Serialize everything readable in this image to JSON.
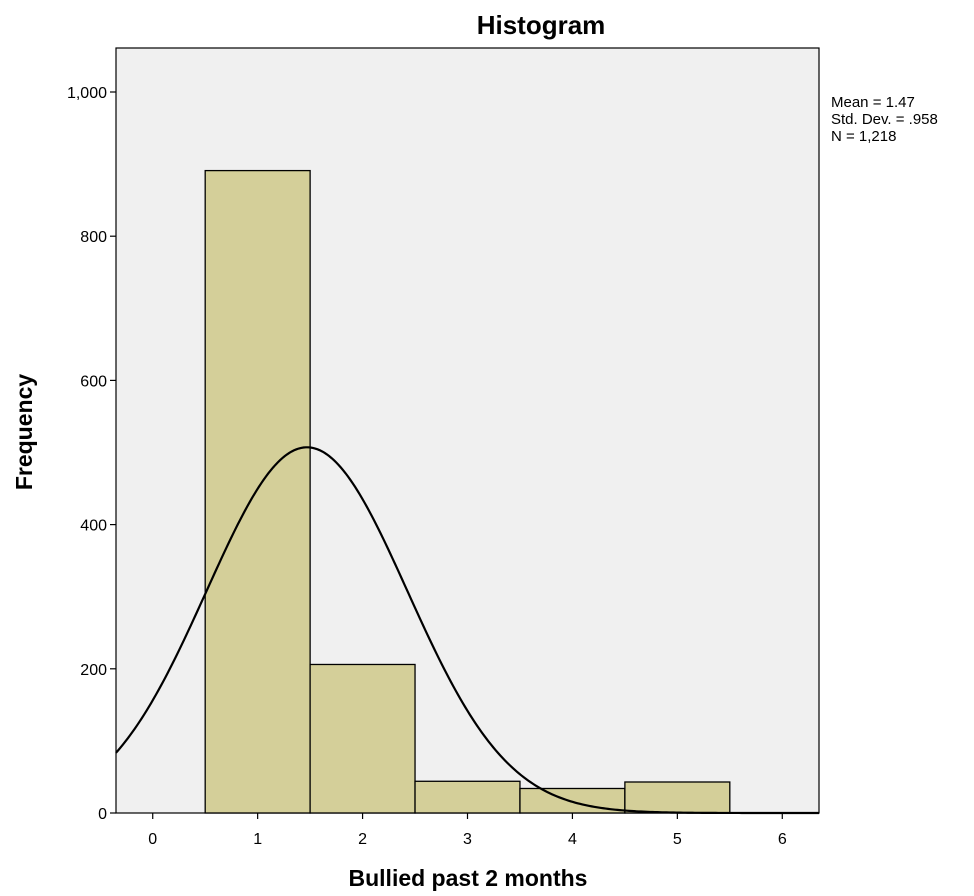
{
  "chart_data": {
    "type": "bar",
    "title": "Histogram",
    "xlabel": "Bullied past 2 months",
    "ylabel": "Frequency",
    "xlim": [
      -0.35,
      6.35
    ],
    "ylim": [
      0,
      1000
    ],
    "x_ticks": [
      0,
      1,
      2,
      3,
      4,
      5,
      6
    ],
    "x_tick_labels": [
      "0",
      "1",
      "2",
      "3",
      "4",
      "5",
      "6"
    ],
    "y_ticks": [
      0,
      200,
      400,
      600,
      800,
      1000
    ],
    "y_tick_labels": [
      "0",
      "200",
      "400",
      "600",
      "800",
      "1,000"
    ],
    "bins": [
      {
        "center": 1,
        "width": 1,
        "value": 891
      },
      {
        "center": 2,
        "width": 1,
        "value": 206
      },
      {
        "center": 3,
        "width": 1,
        "value": 44
      },
      {
        "center": 4,
        "width": 1,
        "value": 34
      },
      {
        "center": 5,
        "width": 1,
        "value": 43
      }
    ],
    "normal_curve": {
      "mean": 1.47,
      "std_dev": 0.958,
      "n": 1218,
      "bin_width": 1
    },
    "stats": [
      "Mean = 1.47",
      "Std. Dev. = .958",
      "N = 1,218"
    ],
    "colors": {
      "bar_fill": "#d4cf99",
      "plot_background": "#f0f0f0",
      "curve": "#000000"
    }
  }
}
